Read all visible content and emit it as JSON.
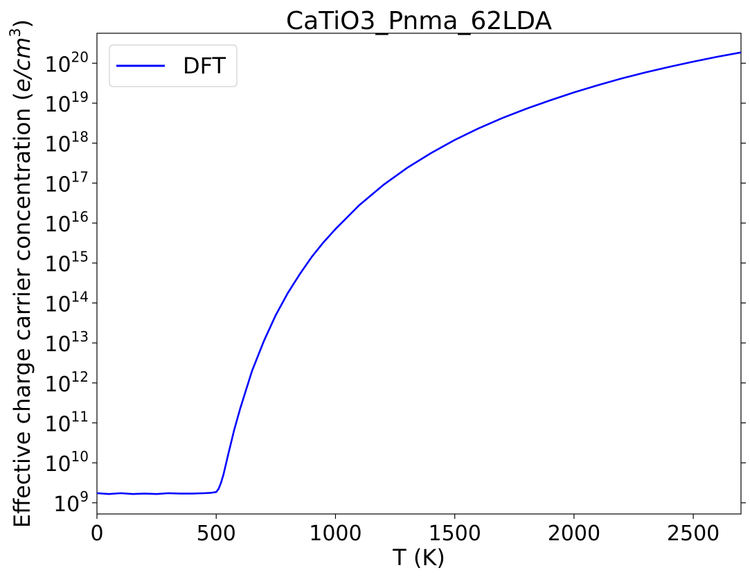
{
  "chart_data": {
    "type": "line",
    "title": "CaTiO3_Pnma_62LDA",
    "xlabel": "T (K)",
    "ylabel_prefix": "Effective charge carrier concentration (",
    "ylabel_unit": "e/cm",
    "ylabel_exp": "3",
    "ylabel_suffix": ")",
    "xlim": [
      0,
      2700
    ],
    "ylim_log10": [
      8.72,
      20.75
    ],
    "yscale": "log",
    "x_ticks": [
      {
        "value": 0,
        "label": "0"
      },
      {
        "value": 500,
        "label": "500"
      },
      {
        "value": 1000,
        "label": "1000"
      },
      {
        "value": 1500,
        "label": "1500"
      },
      {
        "value": 2000,
        "label": "2000"
      },
      {
        "value": 2500,
        "label": "2500"
      }
    ],
    "y_ticks": [
      {
        "exp": 9,
        "base": "10",
        "power": "9"
      },
      {
        "exp": 10,
        "base": "10",
        "power": "10"
      },
      {
        "exp": 11,
        "base": "10",
        "power": "11"
      },
      {
        "exp": 12,
        "base": "10",
        "power": "12"
      },
      {
        "exp": 13,
        "base": "10",
        "power": "13"
      },
      {
        "exp": 14,
        "base": "10",
        "power": "14"
      },
      {
        "exp": 15,
        "base": "10",
        "power": "15"
      },
      {
        "exp": 16,
        "base": "10",
        "power": "16"
      },
      {
        "exp": 17,
        "base": "10",
        "power": "17"
      },
      {
        "exp": 18,
        "base": "10",
        "power": "18"
      },
      {
        "exp": 19,
        "base": "10",
        "power": "19"
      },
      {
        "exp": 20,
        "base": "10",
        "power": "20"
      }
    ],
    "grid": false,
    "legend_placement": "top-left",
    "series": [
      {
        "name": "DFT",
        "color": "#0000ff",
        "x": [
          0,
          50,
          100,
          150,
          200,
          250,
          300,
          350,
          400,
          450,
          480,
          500,
          510,
          520,
          530,
          540,
          550,
          575,
          600,
          650,
          700,
          750,
          800,
          850,
          900,
          950,
          1000,
          1100,
          1200,
          1300,
          1400,
          1500,
          1600,
          1700,
          1800,
          1900,
          2000,
          2100,
          2200,
          2300,
          2400,
          2500,
          2600,
          2700
        ],
        "log10_y": [
          9.24,
          9.22,
          9.24,
          9.22,
          9.23,
          9.22,
          9.24,
          9.23,
          9.23,
          9.24,
          9.25,
          9.27,
          9.35,
          9.5,
          9.7,
          9.95,
          10.2,
          10.82,
          11.35,
          12.3,
          13.05,
          13.7,
          14.25,
          14.72,
          15.15,
          15.52,
          15.85,
          16.45,
          16.95,
          17.38,
          17.75,
          18.08,
          18.37,
          18.63,
          18.86,
          19.07,
          19.27,
          19.45,
          19.62,
          19.77,
          19.91,
          20.04,
          20.16,
          20.27
        ]
      }
    ]
  }
}
